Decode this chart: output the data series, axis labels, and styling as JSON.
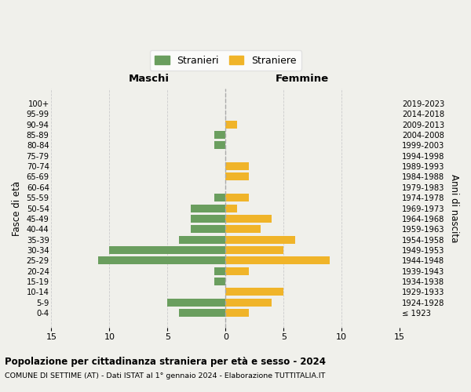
{
  "age_groups": [
    "100+",
    "95-99",
    "90-94",
    "85-89",
    "80-84",
    "75-79",
    "70-74",
    "65-69",
    "60-64",
    "55-59",
    "50-54",
    "45-49",
    "40-44",
    "35-39",
    "30-34",
    "25-29",
    "20-24",
    "15-19",
    "10-14",
    "5-9",
    "0-4"
  ],
  "birth_years": [
    "≤ 1923",
    "1924-1928",
    "1929-1933",
    "1934-1938",
    "1939-1943",
    "1944-1948",
    "1949-1953",
    "1954-1958",
    "1959-1963",
    "1964-1968",
    "1969-1973",
    "1974-1978",
    "1979-1983",
    "1984-1988",
    "1989-1993",
    "1994-1998",
    "1999-2003",
    "2004-2008",
    "2009-2013",
    "2014-2018",
    "2019-2023"
  ],
  "maschi": [
    0,
    0,
    0,
    1,
    1,
    0,
    0,
    0,
    0,
    1,
    3,
    3,
    3,
    4,
    10,
    11,
    1,
    1,
    0,
    5,
    4
  ],
  "femmine": [
    0,
    0,
    1,
    0,
    0,
    0,
    2,
    2,
    0,
    2,
    1,
    4,
    3,
    6,
    5,
    9,
    2,
    0,
    5,
    4,
    2
  ],
  "maschi_color": "#6a9e5e",
  "femmine_color": "#f0b429",
  "background_color": "#f0f0eb",
  "grid_color": "#cccccc",
  "xlim": 15,
  "title": "Popolazione per cittadinanza straniera per età e sesso - 2024",
  "subtitle": "COMUNE DI SETTIME (AT) - Dati ISTAT al 1° gennaio 2024 - Elaborazione TUTTITALIA.IT",
  "ylabel_left": "Fasce di età",
  "ylabel_right": "Anni di nascita",
  "label_maschi": "Maschi",
  "label_femmine": "Femmine",
  "legend_stranieri": "Stranieri",
  "legend_straniere": "Straniere"
}
